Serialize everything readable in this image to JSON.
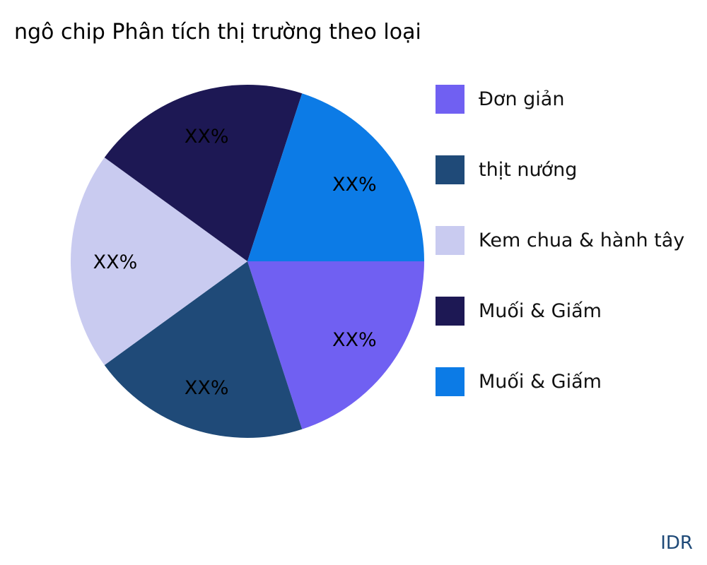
{
  "chart_data": {
    "type": "pie",
    "title": "ngô chip Phân tích thị trường theo loại",
    "categories": [
      "Đơn giản",
      "thịt nướng",
      "Kem chua & hành tây",
      "Muối & Giấm",
      "Muối & Giấm"
    ],
    "values": [
      20,
      20,
      20,
      20,
      20
    ],
    "data_labels": [
      "XX%",
      "XX%",
      "XX%",
      "XX%",
      "XX%"
    ],
    "colors": [
      "#7060f2",
      "#1f4a78",
      "#c9cbf0",
      "#1d1854",
      "#0c7be6"
    ],
    "legend_position": "right"
  },
  "brand": "IDR"
}
